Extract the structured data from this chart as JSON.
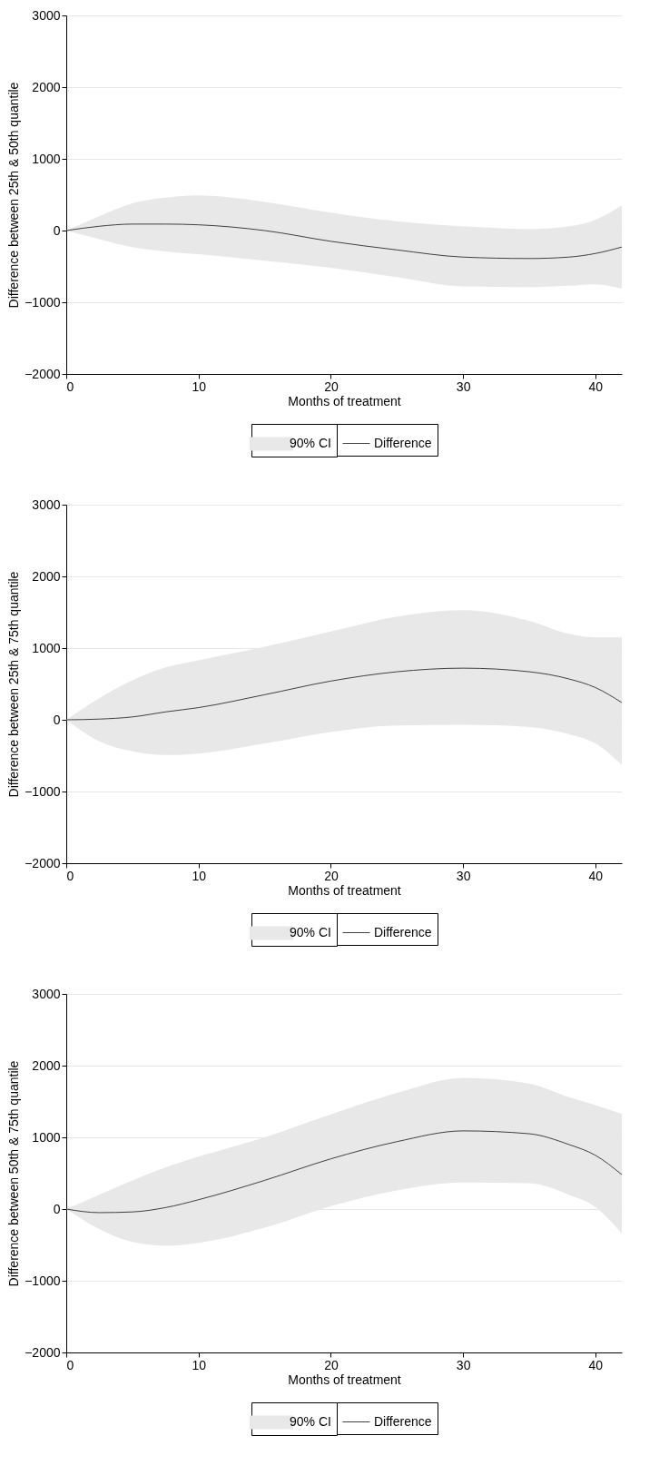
{
  "chart_data": [
    {
      "type": "line",
      "xlabel": "Months of treatment",
      "ylabel": "Difference between 25th & 50th quantile",
      "xlim": [
        0,
        42
      ],
      "ylim": [
        -2000,
        3000
      ],
      "xticks": [
        0,
        10,
        20,
        30,
        40
      ],
      "yticks": [
        -2000,
        -1000,
        0,
        1000,
        2000,
        3000
      ],
      "grid": "y",
      "legend": "bottom",
      "annotations": [
        "90% CI"
      ],
      "series": [
        {
          "name": "Difference",
          "color": "#404040",
          "x": [
            0,
            2.5,
            5,
            7.5,
            10,
            15,
            20,
            25,
            30,
            35,
            38,
            40,
            42
          ],
          "values": [
            0,
            60,
            90,
            90,
            80,
            0,
            -150,
            -270,
            -370,
            -390,
            -370,
            -320,
            -230
          ],
          "lower": [
            0,
            -120,
            -230,
            -290,
            -330,
            -420,
            -520,
            -650,
            -780,
            -790,
            -770,
            -750,
            -810
          ],
          "upper": [
            0,
            200,
            380,
            460,
            490,
            400,
            250,
            130,
            60,
            20,
            60,
            150,
            350
          ]
        }
      ]
    },
    {
      "type": "line",
      "xlabel": "Months of treatment",
      "ylabel": "Difference between 25th & 75th quantile",
      "xlim": [
        0,
        42
      ],
      "ylim": [
        -2000,
        3000
      ],
      "xticks": [
        0,
        10,
        20,
        30,
        40
      ],
      "yticks": [
        -2000,
        -1000,
        0,
        1000,
        2000,
        3000
      ],
      "grid": "y",
      "legend": "bottom",
      "annotations": [
        "90% CI"
      ],
      "series": [
        {
          "name": "Difference",
          "color": "#404040",
          "x": [
            0,
            2.5,
            5,
            7.5,
            10,
            15,
            20,
            25,
            30,
            35,
            38,
            40,
            42
          ],
          "values": [
            0,
            10,
            40,
            110,
            170,
            350,
            540,
            670,
            720,
            670,
            570,
            450,
            240
          ],
          "lower": [
            0,
            -300,
            -440,
            -490,
            -470,
            -330,
            -170,
            -80,
            -70,
            -100,
            -200,
            -330,
            -630
          ],
          "upper": [
            0,
            300,
            550,
            730,
            830,
            1020,
            1230,
            1440,
            1530,
            1380,
            1200,
            1150,
            1150
          ]
        }
      ]
    },
    {
      "type": "line",
      "xlabel": "Months of treatment",
      "ylabel": "Difference between 50th & 75th quantile",
      "xlim": [
        0,
        42
      ],
      "ylim": [
        -2000,
        3000
      ],
      "xticks": [
        0,
        10,
        20,
        30,
        40
      ],
      "yticks": [
        -2000,
        -1000,
        0,
        1000,
        2000,
        3000
      ],
      "grid": "y",
      "legend": "bottom",
      "annotations": [
        "90% CI"
      ],
      "series": [
        {
          "name": "Difference",
          "color": "#404040",
          "x": [
            0,
            2.5,
            5,
            7.5,
            10,
            15,
            20,
            25,
            30,
            35,
            38,
            40,
            42
          ],
          "values": [
            0,
            -50,
            -40,
            20,
            130,
            400,
            700,
            940,
            1090,
            1050,
            900,
            750,
            480
          ],
          "lower": [
            0,
            -280,
            -460,
            -510,
            -470,
            -260,
            40,
            260,
            370,
            360,
            200,
            30,
            -340
          ],
          "upper": [
            0,
            200,
            400,
            580,
            730,
            1000,
            1320,
            1620,
            1830,
            1750,
            1560,
            1450,
            1330
          ]
        }
      ]
    }
  ]
}
